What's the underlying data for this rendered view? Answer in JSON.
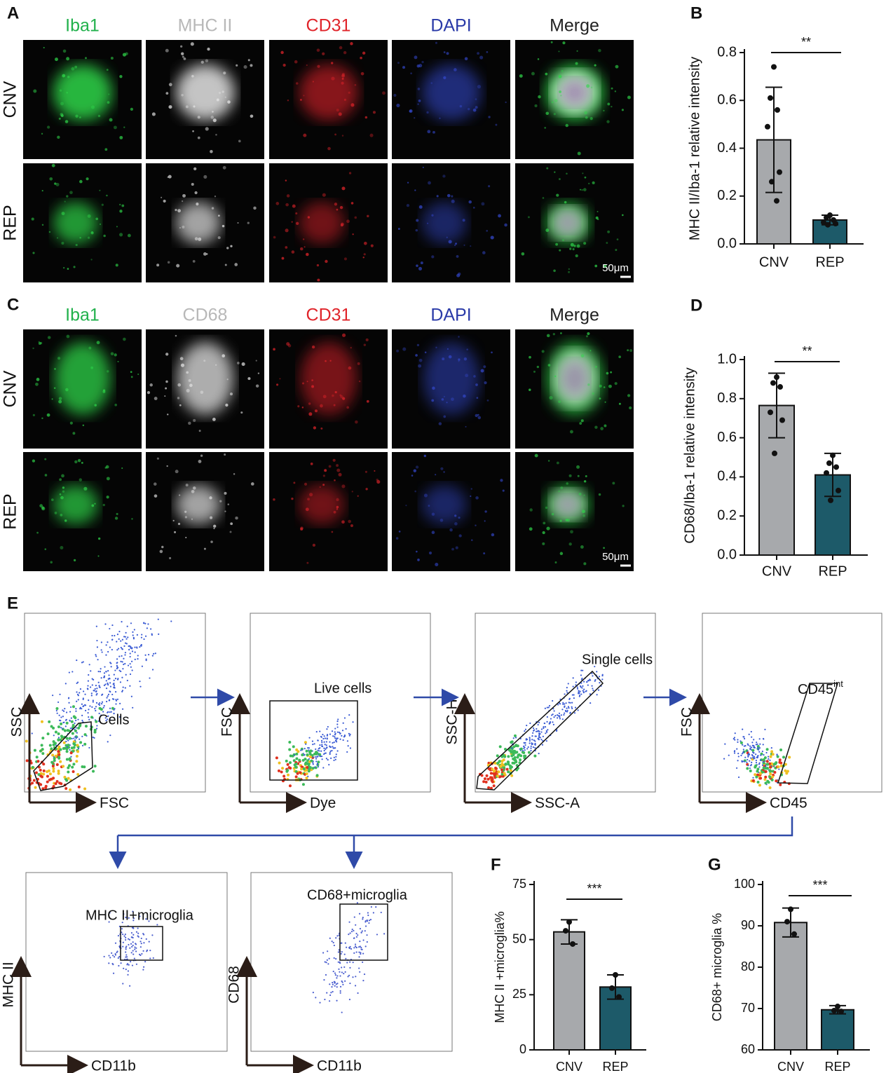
{
  "panels": {
    "A": {
      "label": "A",
      "columns": [
        "Iba1",
        "MHC II",
        "CD31",
        "DAPI",
        "Merge"
      ],
      "rows": [
        "CNV",
        "REP"
      ],
      "scale_bar": "50μm"
    },
    "C": {
      "label": "C",
      "columns": [
        "Iba1",
        "CD68",
        "CD31",
        "DAPI",
        "Merge"
      ],
      "rows": [
        "CNV",
        "REP"
      ],
      "scale_bar": "50μm"
    },
    "E": {
      "label": "E",
      "plots": [
        {
          "x_label": "FSC",
          "y_label": "SSC",
          "gate": "Cells"
        },
        {
          "x_label": "Dye",
          "y_label": "FSC",
          "gate": "Live cells"
        },
        {
          "x_label": "SSC-A",
          "y_label": "SSC-H",
          "gate": "Single cells"
        },
        {
          "x_label": "CD45",
          "y_label": "FSC",
          "gate": "CD45",
          "gate_sup": "int"
        },
        {
          "x_label": "CD11b",
          "y_label": "MHC II",
          "gate": "MHC II+microglia"
        },
        {
          "x_label": "CD11b",
          "y_label": "CD68",
          "gate": "CD68+microglia"
        }
      ]
    }
  },
  "chart_data": [
    {
      "type": "bar",
      "label": "B",
      "ylabel": "MHC II/Iba-1 relative  intensity",
      "categories": [
        "CNV",
        "REP"
      ],
      "values": [
        0.435,
        0.1
      ],
      "errors": [
        0.22,
        0.02
      ],
      "colors": [
        "#a7a9ac",
        "#1d5a69"
      ],
      "points": [
        [
          0.74,
          0.61,
          0.56,
          0.49,
          0.3,
          0.26,
          0.18
        ],
        [
          0.12,
          0.11,
          0.1,
          0.09,
          0.085,
          0.08
        ]
      ],
      "significance": "**",
      "ylim": [
        0,
        0.8
      ],
      "yticks": [
        {
          "value": 0,
          "label": "0.0"
        },
        0.2,
        0.4,
        0.6,
        0.8
      ]
    },
    {
      "type": "bar",
      "label": "D",
      "ylabel": "CD68/Iba-1 relative  intensity",
      "categories": [
        "CNV",
        "REP"
      ],
      "values": [
        0.765,
        0.41
      ],
      "errors": [
        0.165,
        0.11
      ],
      "colors": [
        "#a7a9ac",
        "#1d5a69"
      ],
      "points": [
        [
          0.91,
          0.88,
          0.86,
          0.73,
          0.69,
          0.52
        ],
        [
          0.51,
          0.47,
          0.45,
          0.42,
          0.33,
          0.28
        ]
      ],
      "significance": "**",
      "ylim": [
        0,
        1.0
      ],
      "yticks": [
        {
          "value": 0,
          "label": "0.0"
        },
        0.2,
        0.4,
        0.6,
        0.8,
        {
          "value": 1,
          "label": "1.0"
        }
      ]
    },
    {
      "type": "bar",
      "label": "F",
      "ylabel": "MHC II +microglia%",
      "categories": [
        "CNV",
        "REP"
      ],
      "values": [
        53.5,
        28.5
      ],
      "errors": [
        5.5,
        5.5
      ],
      "colors": [
        "#a7a9ac",
        "#1d5a69"
      ],
      "points": [
        [
          58,
          54,
          48
        ],
        [
          34,
          28,
          24
        ]
      ],
      "significance": "***",
      "ylim": [
        0,
        75
      ],
      "yticks": [
        0,
        25,
        50,
        75
      ]
    },
    {
      "type": "bar",
      "label": "G",
      "ylabel": "CD68+ microglia %",
      "categories": [
        "CNV",
        "REP"
      ],
      "values": [
        90.8,
        69.7
      ],
      "errors": [
        3.5,
        1
      ],
      "colors": [
        "#a7a9ac",
        "#1d5a69"
      ],
      "points": [
        [
          94,
          91,
          88
        ],
        [
          70.5,
          69.5,
          69.3
        ]
      ],
      "significance": "***",
      "ylim": [
        60,
        100
      ],
      "yticks": [
        60,
        70,
        80,
        90,
        100
      ]
    }
  ]
}
